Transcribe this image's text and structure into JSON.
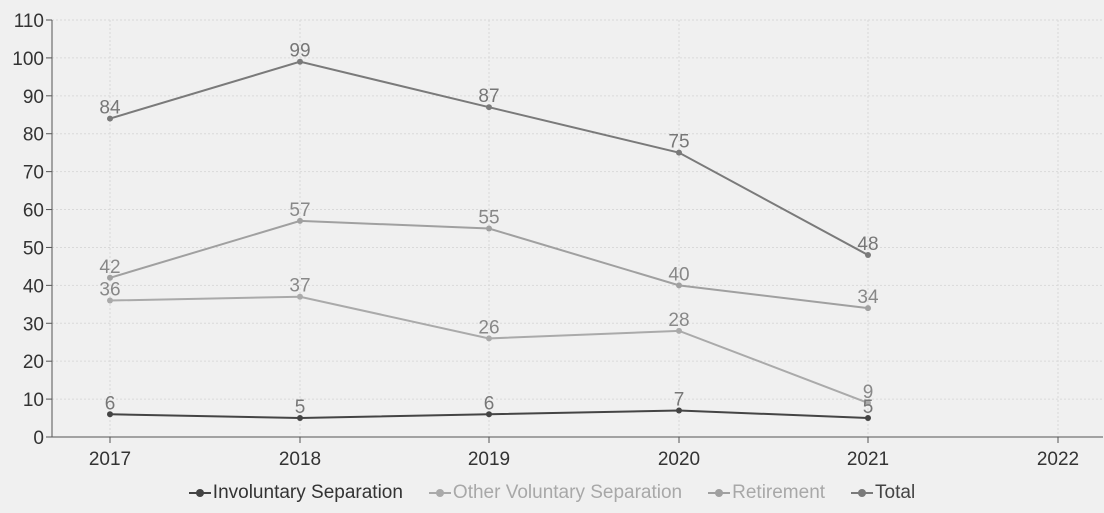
{
  "chart_data": {
    "type": "line",
    "x": [
      "2017",
      "2018",
      "2019",
      "2020",
      "2021",
      "2022"
    ],
    "ylim": [
      0,
      110
    ],
    "yticks": [
      0,
      10,
      20,
      30,
      40,
      50,
      60,
      70,
      80,
      90,
      100,
      110
    ],
    "grid": true,
    "legend_position": "bottom",
    "series": [
      {
        "name": "Involuntary Separation",
        "color": "#444444",
        "label_color": "#777777",
        "values": [
          6,
          5,
          6,
          7,
          5,
          null
        ]
      },
      {
        "name": "Other Voluntary Separation",
        "color": "#aaaaaa",
        "label_color": "#888888",
        "values": [
          36,
          37,
          26,
          28,
          9,
          null
        ]
      },
      {
        "name": "Retirement",
        "color": "#a0a0a0",
        "label_color": "#888888",
        "values": [
          42,
          57,
          55,
          40,
          34,
          null
        ]
      },
      {
        "name": "Total",
        "color": "#7a7a7a",
        "label_color": "#777777",
        "values": [
          84,
          99,
          87,
          75,
          48,
          null
        ]
      }
    ]
  }
}
